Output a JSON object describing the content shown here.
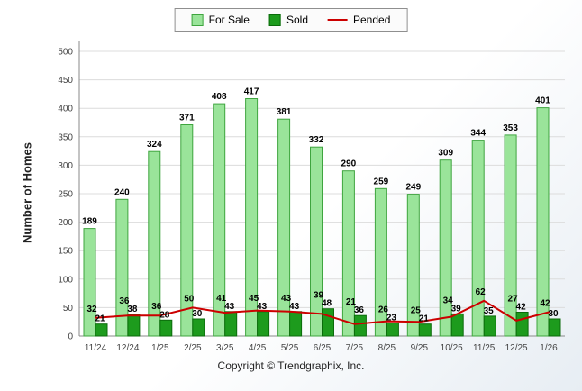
{
  "footer": {
    "copyright": "Copyright © Trendgraphix, Inc."
  },
  "chart_data": {
    "type": "bar",
    "title": "",
    "xlabel": "",
    "ylabel": "Number of Homes",
    "ylim": [
      0,
      500
    ],
    "ytick_step": 50,
    "grid": true,
    "legend_position": "top",
    "categories": [
      "11/24",
      "12/24",
      "1/25",
      "2/25",
      "3/25",
      "4/25",
      "5/25",
      "6/25",
      "7/25",
      "8/25",
      "9/25",
      "10/25",
      "11/25",
      "12/25",
      "1/26"
    ],
    "series": [
      {
        "name": "For Sale",
        "type": "bar",
        "color": "#9ae49a",
        "border": "#3fa53f",
        "values": [
          189,
          240,
          324,
          371,
          408,
          417,
          381,
          332,
          290,
          259,
          249,
          309,
          344,
          353,
          401
        ]
      },
      {
        "name": "Sold",
        "type": "bar",
        "color": "#1d9b1d",
        "border": "#0b6b0b",
        "values": [
          21,
          38,
          28,
          30,
          43,
          43,
          43,
          48,
          36,
          23,
          21,
          39,
          35,
          42,
          30
        ]
      },
      {
        "name": "Pended",
        "type": "line",
        "color": "#cc0000",
        "values": [
          32,
          36,
          36,
          50,
          41,
          45,
          43,
          39,
          21,
          26,
          25,
          34,
          62,
          27,
          42
        ]
      }
    ]
  }
}
